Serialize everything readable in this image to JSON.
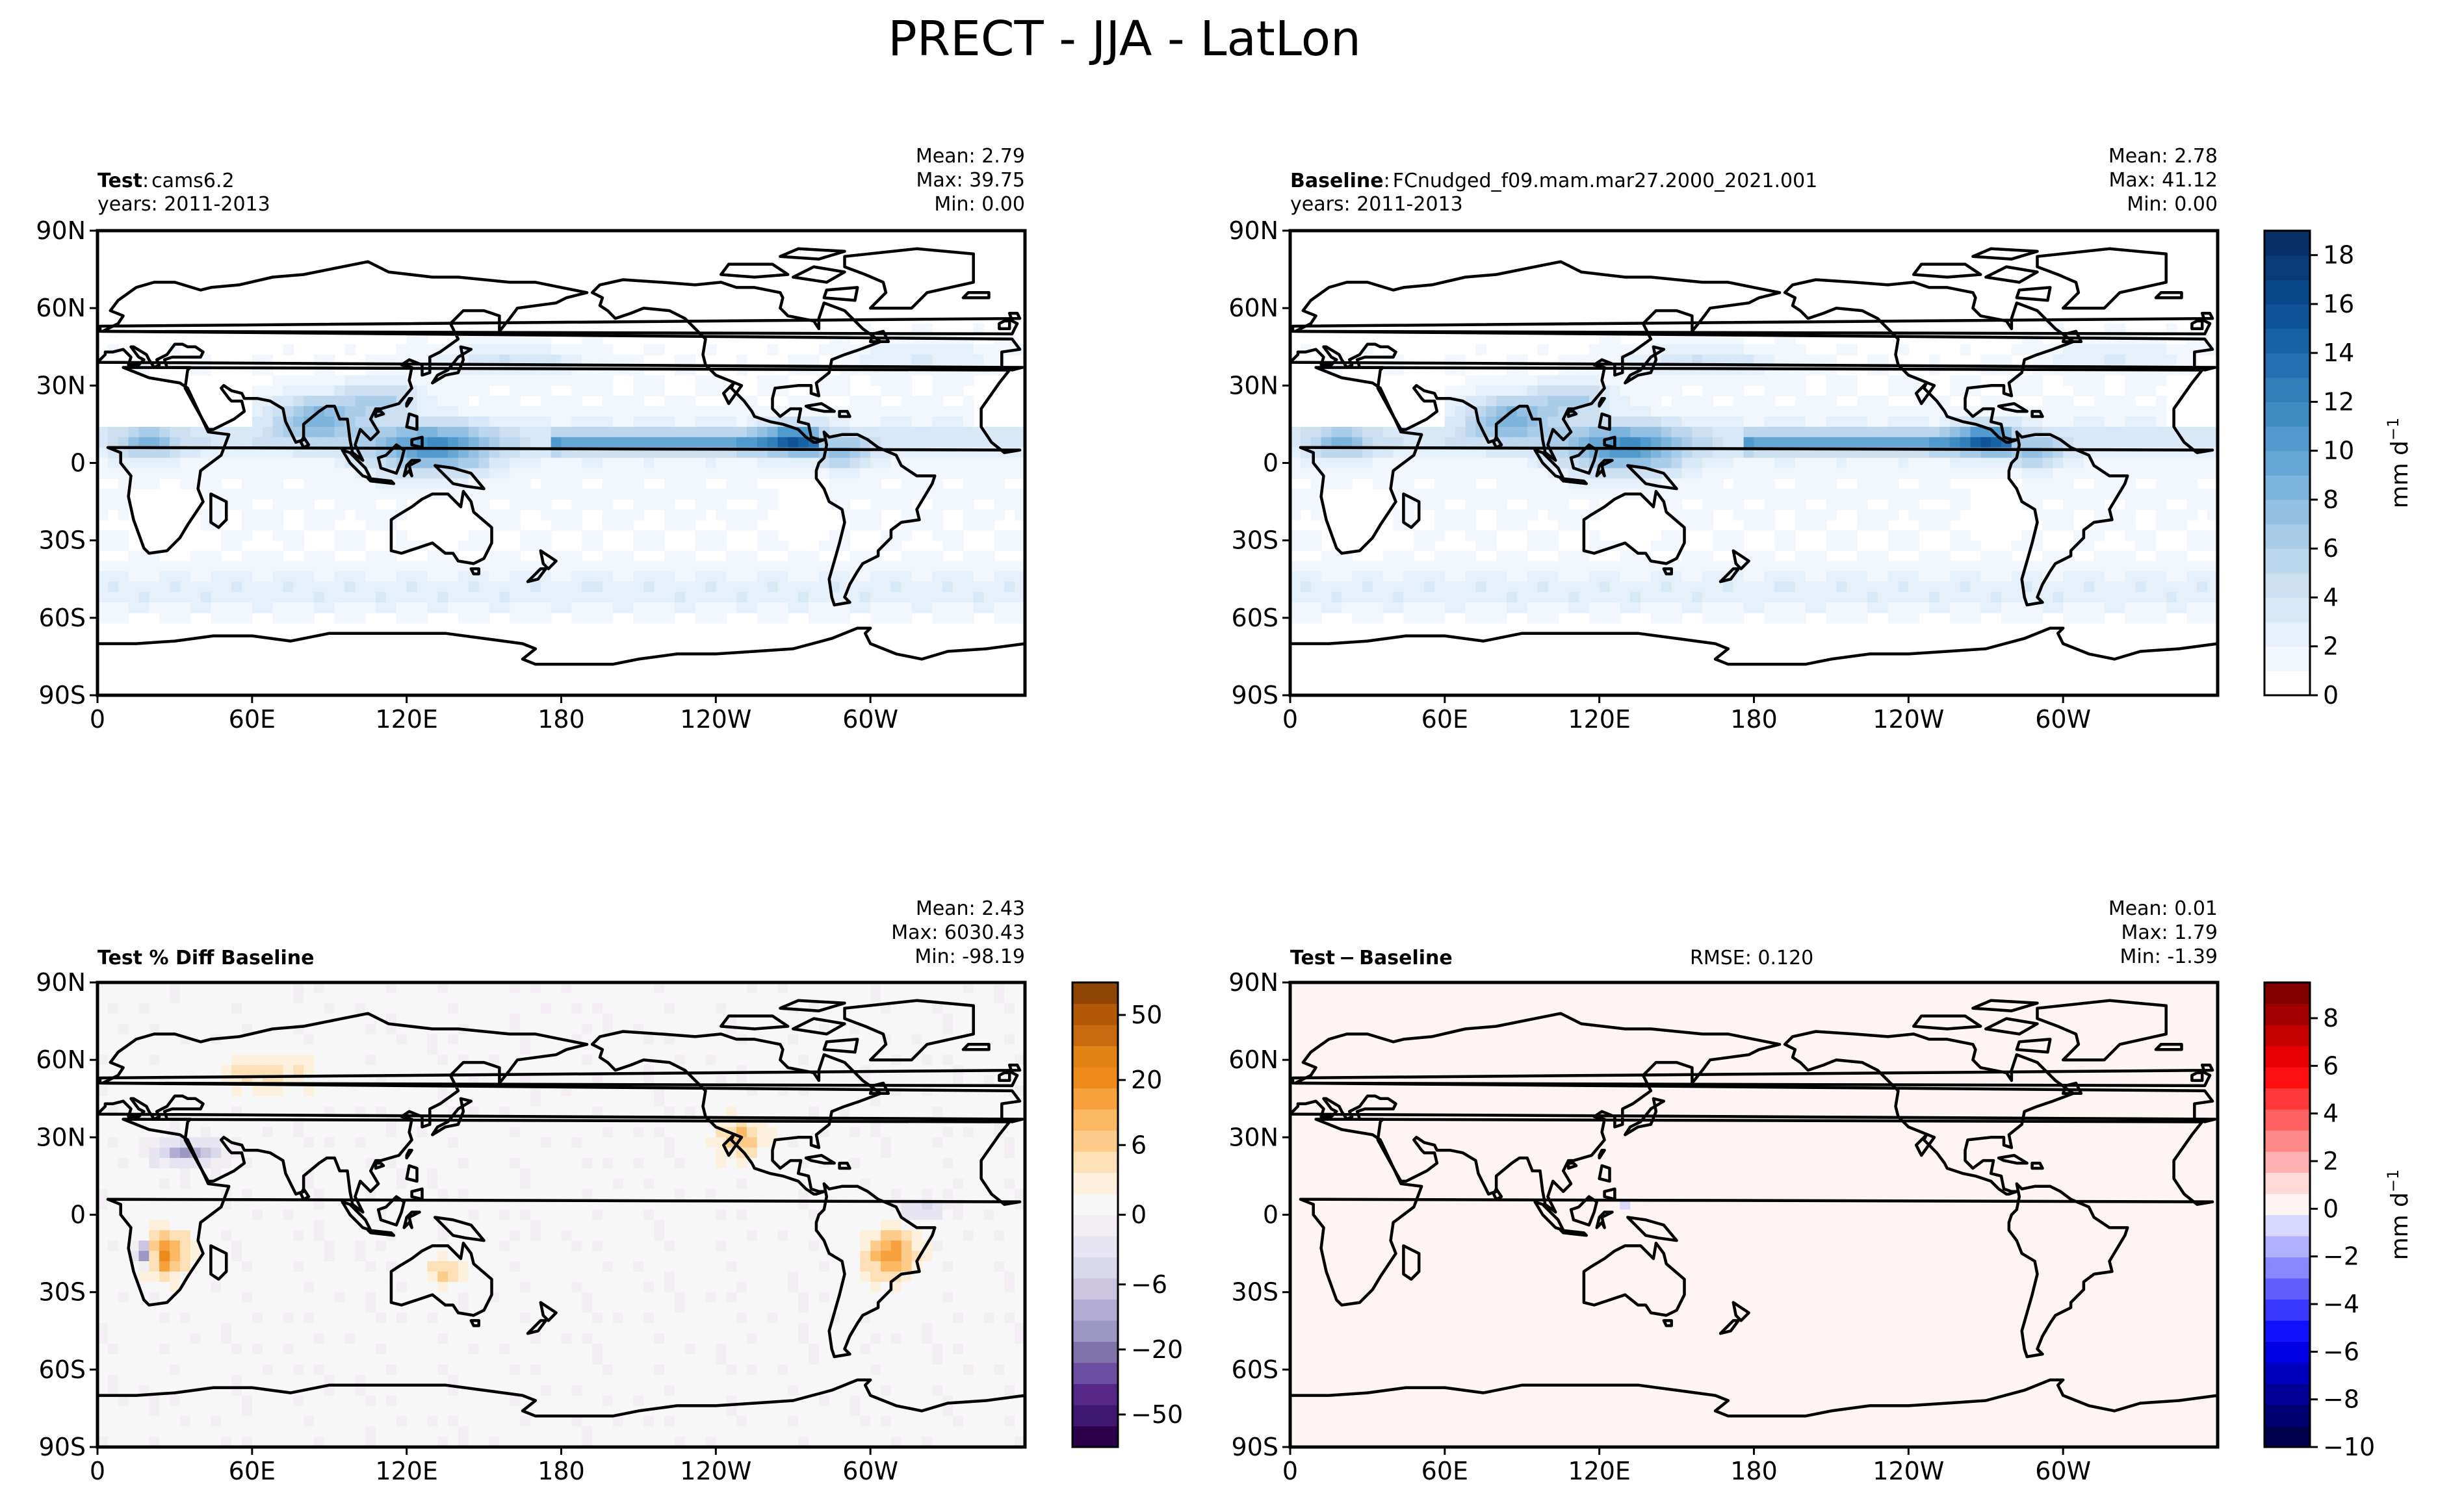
{
  "figure": {
    "title": "PRECT - JJA - LatLon",
    "x_ticks": [
      "0",
      "60E",
      "120E",
      "180",
      "120W",
      "60W"
    ],
    "y_ticks": [
      "90N",
      "60N",
      "30N",
      "0",
      "30S",
      "60S",
      "90S"
    ]
  },
  "panels": [
    {
      "id": "test",
      "label": "Test",
      "label_sep": ":",
      "name": "cams6.2",
      "years": "years: 2011-2013",
      "mean": "Mean:  2.79",
      "max": "Max: 39.75",
      "min": "Min:  0.00",
      "field": "precip",
      "colormap": "Blues"
    },
    {
      "id": "baseline",
      "label": "Baseline",
      "label_sep": ":",
      "name": "FCnudged_f09.mam.mar27.2000_2021.001",
      "years": "years: 2011-2013",
      "mean": "Mean:  2.78",
      "max": "Max: 41.12",
      "min": "Min:  0.00",
      "field": "precip",
      "colormap": "Blues"
    },
    {
      "id": "pctdiff",
      "label": "Test % Diff Baseline",
      "mean": "Mean:  2.43",
      "max": "Max: 6030.43",
      "min": "Min: -98.19",
      "field": "pctdiff",
      "colormap": "PuOr_r"
    },
    {
      "id": "diff",
      "label": "Test",
      "label_sep": "−",
      "name": "Baseline",
      "rmse": "RMSE: 0.120",
      "mean": "Mean:  0.01",
      "max": "Max:  1.79",
      "min": "Min: -1.39",
      "field": "diff",
      "colormap": "seismic"
    }
  ],
  "colorbars": {
    "precip": {
      "ticks": [
        "0",
        "2",
        "4",
        "6",
        "8",
        "10",
        "12",
        "14",
        "16",
        "18"
      ],
      "label": "mm d",
      "label_exp": "−1",
      "min": 0,
      "max": 19,
      "colors": [
        "#ffffff",
        "#f2f7fd",
        "#e6f0fa",
        "#d9e8f6",
        "#cce0f2",
        "#bcd7ee",
        "#a9cde9",
        "#94c1e3",
        "#7db4dc",
        "#66a6d4",
        "#519acd",
        "#3f8cc4",
        "#307fbb",
        "#2270b1",
        "#1762a5",
        "#0f5499",
        "#0a478a",
        "#083b77",
        "#082f66"
      ]
    },
    "pctdiff": {
      "ticks": [
        "−50",
        "−20",
        "−6",
        "0",
        "6",
        "20",
        "50"
      ],
      "label": "",
      "colors": [
        "#2d004b",
        "#40176f",
        "#542788",
        "#6a4fa0",
        "#8073ac",
        "#9d97c4",
        "#b2abd2",
        "#cbc5e0",
        "#d8daeb",
        "#e6e5f1",
        "#f3eef3",
        "#f7f7f7",
        "#fdf1dd",
        "#fee0b6",
        "#fdcb8a",
        "#fdb863",
        "#f6a03e",
        "#ed8a1a",
        "#e08214",
        "#c86a0e",
        "#b35806",
        "#8f4604"
      ]
    },
    "diff": {
      "ticks": [
        "−10",
        "−8",
        "−6",
        "−4",
        "−2",
        "0",
        "2",
        "4",
        "6",
        "8"
      ],
      "label": "mm d",
      "label_exp": "−1",
      "min": -10,
      "max": 9.5,
      "colors": [
        "#00004c",
        "#000070",
        "#000096",
        "#0000bc",
        "#0000e3",
        "#1010ff",
        "#3838ff",
        "#6060ff",
        "#8888ff",
        "#b0b0ff",
        "#d8d8ff",
        "#fff4f4",
        "#ffd8d8",
        "#ffb0b0",
        "#ff8888",
        "#ff6060",
        "#ff3838",
        "#ff1010",
        "#e60000",
        "#c40000",
        "#a20000",
        "#800000"
      ]
    }
  }
}
